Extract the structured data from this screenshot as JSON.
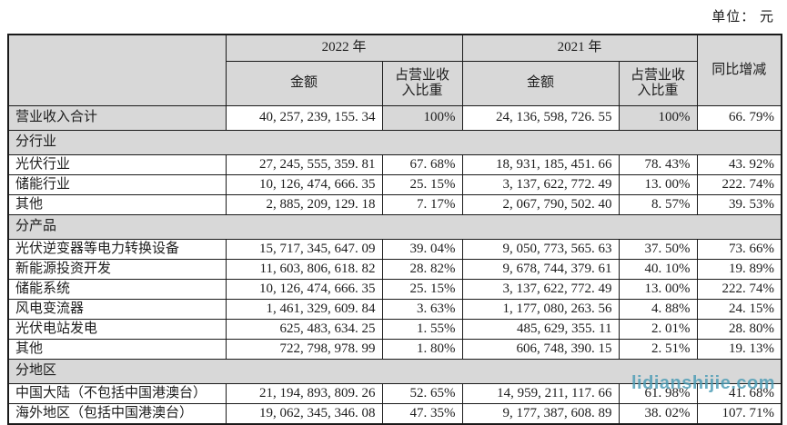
{
  "unit_label": "单位： 元",
  "watermark_text": "lidianshijie.com",
  "colors": {
    "header_gray": "#d8d8d8",
    "border": "#1a1a1a",
    "watermark_teal": "#4a9cb5"
  },
  "header": {
    "year_2022": "2022 年",
    "year_2021": "2021 年",
    "amount": "金额",
    "proportion": "占营业收\n入比重",
    "yoy": "同比增减"
  },
  "rows": [
    {
      "label": "营业收入合计",
      "amt2022": "40, 257, 239, 155. 34",
      "pct2022": "100%",
      "amt2021": "24, 136, 598, 726. 55",
      "pct2021": "100%",
      "yoy": "66. 79%"
    },
    {
      "section": "分行业"
    },
    {
      "label": "光伏行业",
      "amt2022": "27, 245, 555, 359. 81",
      "pct2022": "67. 68%",
      "amt2021": "18, 931, 185, 451. 66",
      "pct2021": "78. 43%",
      "yoy": "43. 92%"
    },
    {
      "label": "储能行业",
      "amt2022": "10, 126, 474, 666. 35",
      "pct2022": "25. 15%",
      "amt2021": "3, 137, 622, 772. 49",
      "pct2021": "13. 00%",
      "yoy": "222. 74%"
    },
    {
      "label": "其他",
      "amt2022": "2, 885, 209, 129. 18",
      "pct2022": "7. 17%",
      "amt2021": "2, 067, 790, 502. 40",
      "pct2021": "8. 57%",
      "yoy": "39. 53%"
    },
    {
      "section": "分产品"
    },
    {
      "label": "光伏逆变器等电力转换设备",
      "amt2022": "15, 717, 345, 647. 09",
      "pct2022": "39. 04%",
      "amt2021": "9, 050, 773, 565. 63",
      "pct2021": "37. 50%",
      "yoy": "73. 66%"
    },
    {
      "label": "新能源投资开发",
      "amt2022": "11, 603, 806, 618. 82",
      "pct2022": "28. 82%",
      "amt2021": "9, 678, 744, 379. 61",
      "pct2021": "40. 10%",
      "yoy": "19. 89%"
    },
    {
      "label": "储能系统",
      "amt2022": "10, 126, 474, 666. 35",
      "pct2022": "25. 15%",
      "amt2021": "3, 137, 622, 772. 49",
      "pct2021": "13. 00%",
      "yoy": "222. 74%"
    },
    {
      "label": "风电变流器",
      "amt2022": "1, 461, 329, 609. 84",
      "pct2022": "3. 63%",
      "amt2021": "1, 177, 080, 263. 56",
      "pct2021": "4. 88%",
      "yoy": "24. 15%"
    },
    {
      "label": "光伏电站发电",
      "amt2022": "625, 483, 634. 25",
      "pct2022": "1. 55%",
      "amt2021": "485, 629, 355. 11",
      "pct2021": "2. 01%",
      "yoy": "28. 80%"
    },
    {
      "label": "其他",
      "amt2022": "722, 798, 978. 99",
      "pct2022": "1. 80%",
      "amt2021": "606, 748, 390. 15",
      "pct2021": "2. 51%",
      "yoy": "19. 13%"
    },
    {
      "section": "分地区"
    },
    {
      "label": "中国大陆（不包括中国港澳台）",
      "amt2022": "21, 194, 893, 809. 26",
      "pct2022": "52. 65%",
      "amt2021": "14, 959, 211, 117. 66",
      "pct2021": "61. 98%",
      "yoy": "41. 68%"
    },
    {
      "label": "海外地区（包括中国港澳台）",
      "amt2022": "19, 062, 345, 346. 08",
      "pct2022": "47. 35%",
      "amt2021": "9, 177, 387, 608. 89",
      "pct2021": "38. 02%",
      "yoy": "107. 71%"
    }
  ]
}
